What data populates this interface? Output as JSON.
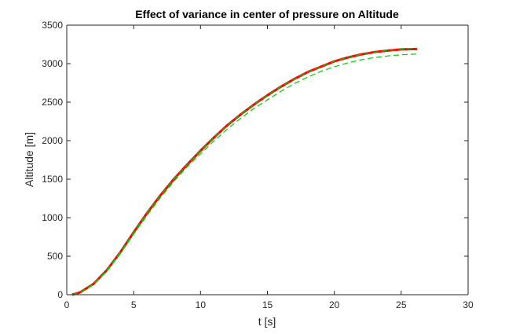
{
  "chart_data": {
    "type": "line",
    "title": "Effect of variance in center of pressure on Altitude",
    "xlabel": "t [s]",
    "ylabel": "Altitude [m]",
    "xlim": [
      0,
      30
    ],
    "ylim": [
      0,
      3500
    ],
    "xticks": [
      0,
      5,
      10,
      15,
      20,
      25,
      30
    ],
    "yticks": [
      0,
      500,
      1000,
      1500,
      2000,
      2500,
      3000,
      3500
    ],
    "grid": false,
    "legend": "none",
    "series": [
      {
        "color": "#ff0000",
        "style": "solid-thick",
        "x": [
          0.4,
          1,
          2,
          3,
          4,
          5,
          6,
          7,
          8,
          9,
          10,
          11,
          12,
          13,
          14,
          15,
          16,
          17,
          18,
          19,
          20,
          21,
          22,
          23,
          24,
          25,
          26.2
        ],
        "y": [
          0,
          30,
          140,
          320,
          550,
          810,
          1060,
          1290,
          1500,
          1690,
          1870,
          2040,
          2200,
          2340,
          2470,
          2590,
          2700,
          2800,
          2890,
          2960,
          3030,
          3080,
          3120,
          3150,
          3170,
          3185,
          3190
        ]
      },
      {
        "color": "#00cc00",
        "style": "dashed",
        "x": [
          0.4,
          1,
          2,
          3,
          4,
          5,
          6,
          7,
          8,
          9,
          10,
          11,
          12,
          13,
          14,
          15,
          16,
          17,
          18,
          19,
          20,
          21,
          22,
          23,
          24,
          25,
          26.2
        ],
        "y": [
          0,
          30,
          140,
          320,
          550,
          810,
          1060,
          1290,
          1500,
          1690,
          1870,
          2040,
          2200,
          2340,
          2470,
          2590,
          2700,
          2800,
          2890,
          2960,
          3030,
          3080,
          3120,
          3150,
          3170,
          3185,
          3200
        ]
      },
      {
        "color": "#00cc00",
        "style": "dashed",
        "x": [
          0.4,
          1,
          2,
          3,
          4,
          5,
          6,
          7,
          8,
          9,
          10,
          11,
          12,
          13,
          14,
          15,
          16,
          17,
          18,
          19,
          20,
          21,
          22,
          23,
          24,
          25,
          26.2
        ],
        "y": [
          0,
          25,
          130,
          305,
          530,
          785,
          1030,
          1260,
          1470,
          1660,
          1830,
          1995,
          2150,
          2290,
          2420,
          2530,
          2640,
          2740,
          2825,
          2900,
          2960,
          3010,
          3050,
          3080,
          3100,
          3115,
          3125
        ]
      }
    ]
  }
}
